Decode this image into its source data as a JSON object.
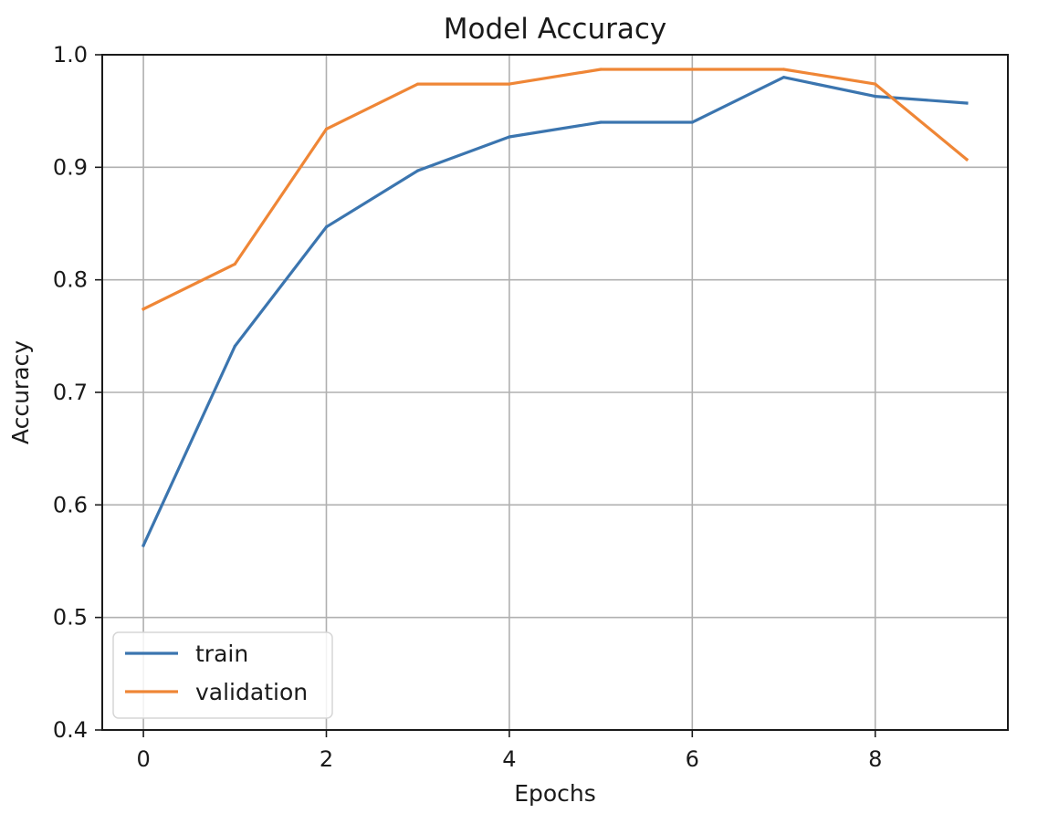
{
  "chart_data": {
    "type": "line",
    "title": "Model Accuracy",
    "xlabel": "Epochs",
    "ylabel": "Accuracy",
    "x": [
      0,
      1,
      2,
      3,
      4,
      5,
      6,
      7,
      8,
      9
    ],
    "xlim": [
      -0.45,
      9.45
    ],
    "ylim": [
      0.4,
      1.0
    ],
    "xticks": [
      0,
      2,
      4,
      6,
      8
    ],
    "yticks": [
      0.4,
      0.5,
      0.6,
      0.7,
      0.8,
      0.9,
      1.0
    ],
    "xtick_labels": [
      "0",
      "2",
      "4",
      "6",
      "8"
    ],
    "ytick_labels": [
      "0.4",
      "0.5",
      "0.6",
      "0.7",
      "0.8",
      "0.9",
      "1.0"
    ],
    "grid": true,
    "legend_position": "bottom-left",
    "series": [
      {
        "name": "train",
        "color": "#3b75af",
        "values": [
          0.564,
          0.741,
          0.847,
          0.897,
          0.927,
          0.94,
          0.94,
          0.98,
          0.963,
          0.957
        ]
      },
      {
        "name": "validation",
        "color": "#ef8636",
        "values": [
          0.774,
          0.814,
          0.934,
          0.974,
          0.974,
          0.987,
          0.987,
          0.987,
          0.974,
          0.907
        ]
      }
    ]
  }
}
